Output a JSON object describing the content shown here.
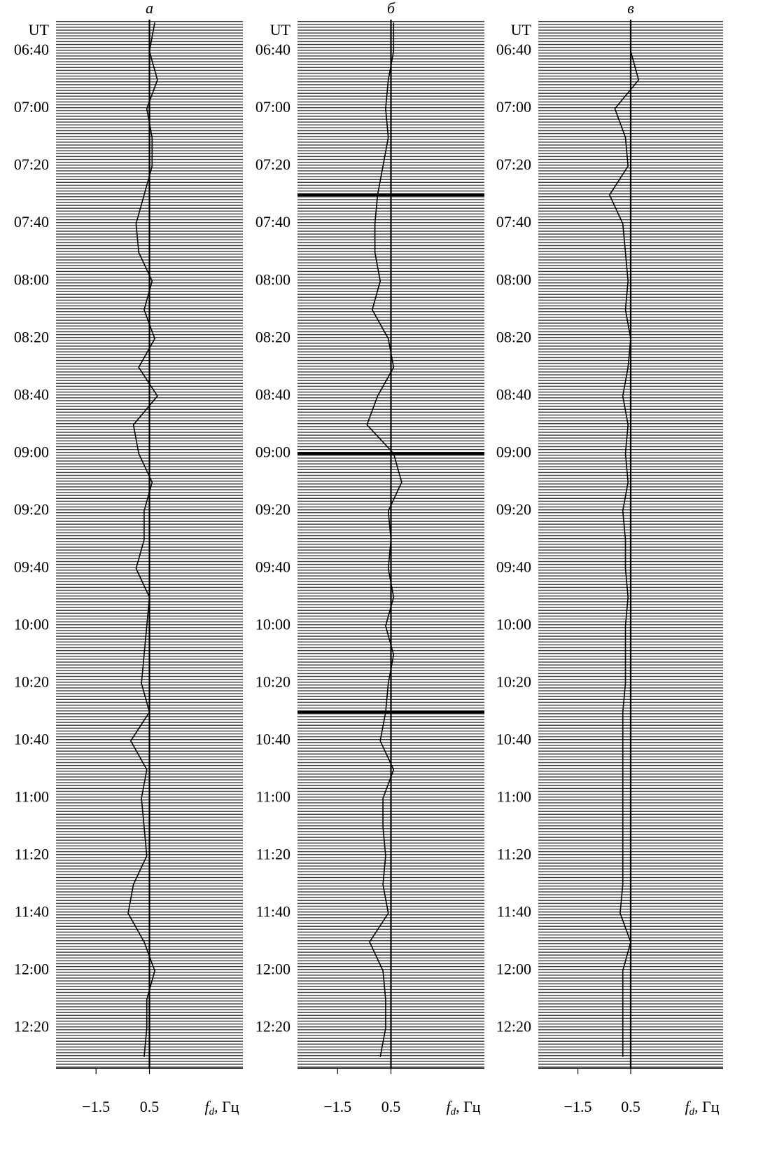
{
  "chart_data": [
    {
      "type": "line",
      "title": "а",
      "ylabel": "UT",
      "xlim": [
        -3,
        4
      ],
      "xticks": [
        {
          "value": -1.5,
          "label": "−1.5"
        },
        0.5
      ],
      "xlabel": {
        "symbol": "f",
        "subscript": "d",
        "unit": ", Гц"
      },
      "ylim": [
        389,
        754
      ],
      "yticks": [
        {
          "value": 400,
          "label": "06:40"
        },
        {
          "value": 420,
          "label": "07:00"
        },
        {
          "value": 440,
          "label": "07:20"
        },
        {
          "value": 460,
          "label": "07:40"
        },
        {
          "value": 480,
          "label": "08:00"
        },
        {
          "value": 500,
          "label": "08:20"
        },
        {
          "value": 520,
          "label": "08:40"
        },
        {
          "value": 540,
          "label": "09:00"
        },
        {
          "value": 560,
          "label": "09:20"
        },
        {
          "value": 580,
          "label": "09:40"
        },
        {
          "value": 600,
          "label": "10:00"
        },
        {
          "value": 620,
          "label": "10:20"
        },
        {
          "value": 640,
          "label": "10:40"
        },
        {
          "value": 660,
          "label": "11:00"
        },
        {
          "value": 680,
          "label": "11:20"
        },
        {
          "value": 700,
          "label": "11:40"
        },
        {
          "value": 720,
          "label": "12:00"
        },
        {
          "value": 740,
          "label": "12:20"
        }
      ],
      "reference_line": 0.5,
      "x": [
        390,
        400,
        410,
        420,
        430,
        440,
        450,
        460,
        470,
        480,
        490,
        500,
        510,
        520,
        530,
        540,
        550,
        560,
        570,
        580,
        590,
        600,
        610,
        620,
        630,
        640,
        650,
        660,
        670,
        680,
        690,
        700,
        710,
        720,
        730,
        740,
        750
      ],
      "color": "#000000",
      "values": [
        0.7,
        0.5,
        0.8,
        0.4,
        0.6,
        0.6,
        0.3,
        0.0,
        0.1,
        0.6,
        0.3,
        0.7,
        0.1,
        0.8,
        -0.1,
        0.1,
        0.6,
        0.3,
        0.3,
        0.0,
        0.5,
        0.4,
        0.3,
        0.2,
        0.5,
        -0.2,
        0.4,
        0.2,
        0.3,
        0.4,
        -0.1,
        -0.3,
        0.3,
        0.7,
        0.4,
        0.4,
        0.3
      ]
    },
    {
      "type": "line",
      "title": "б",
      "ylabel": "UT",
      "xlim": [
        -3,
        4
      ],
      "xticks": [
        {
          "value": -1.5,
          "label": "−1.5"
        },
        0.5
      ],
      "xlabel": {
        "symbol": "f",
        "subscript": "d",
        "unit": ", Гц"
      },
      "ylim": [
        389,
        754
      ],
      "yticks": [
        {
          "value": 400,
          "label": "06:40"
        },
        {
          "value": 420,
          "label": "07:00"
        },
        {
          "value": 440,
          "label": "07:20"
        },
        {
          "value": 460,
          "label": "07:40"
        },
        {
          "value": 480,
          "label": "08:00"
        },
        {
          "value": 500,
          "label": "08:20"
        },
        {
          "value": 520,
          "label": "08:40"
        },
        {
          "value": 540,
          "label": "09:00"
        },
        {
          "value": 560,
          "label": "09:20"
        },
        {
          "value": 580,
          "label": "09:40"
        },
        {
          "value": 600,
          "label": "10:00"
        },
        {
          "value": 620,
          "label": "10:20"
        },
        {
          "value": 640,
          "label": "10:40"
        },
        {
          "value": 660,
          "label": "11:00"
        },
        {
          "value": 680,
          "label": "11:20"
        },
        {
          "value": 700,
          "label": "11:40"
        },
        {
          "value": 720,
          "label": "12:00"
        },
        {
          "value": 740,
          "label": "12:20"
        }
      ],
      "reference_line": 0.5,
      "marked_times": [
        450,
        540,
        630
      ],
      "x": [
        390,
        400,
        410,
        420,
        430,
        440,
        450,
        460,
        470,
        480,
        490,
        500,
        510,
        520,
        530,
        540,
        550,
        560,
        570,
        580,
        590,
        600,
        610,
        620,
        630,
        640,
        650,
        660,
        670,
        680,
        690,
        700,
        710,
        720,
        730,
        740,
        750
      ],
      "color": "#000000",
      "values": [
        0.6,
        0.6,
        0.4,
        0.3,
        0.4,
        0.2,
        0.0,
        -0.1,
        -0.1,
        0.1,
        -0.2,
        0.4,
        0.6,
        0.0,
        -0.4,
        0.6,
        0.9,
        0.4,
        0.5,
        0.4,
        0.6,
        0.3,
        0.6,
        0.4,
        0.3,
        0.1,
        0.6,
        0.2,
        0.2,
        0.3,
        0.2,
        0.4,
        -0.3,
        0.2,
        0.3,
        0.3,
        0.1
      ]
    },
    {
      "type": "line",
      "title": "в",
      "ylabel": "UT",
      "xlim": [
        -3,
        4
      ],
      "xticks": [
        {
          "value": -1.5,
          "label": "−1.5"
        },
        0.5
      ],
      "xlabel": {
        "symbol": "f",
        "subscript": "d",
        "unit": ", Гц"
      },
      "ylim": [
        389,
        754
      ],
      "yticks": [
        {
          "value": 400,
          "label": "06:40"
        },
        {
          "value": 420,
          "label": "07:00"
        },
        {
          "value": 440,
          "label": "07:20"
        },
        {
          "value": 460,
          "label": "07:40"
        },
        {
          "value": 480,
          "label": "08:00"
        },
        {
          "value": 500,
          "label": "08:20"
        },
        {
          "value": 520,
          "label": "08:40"
        },
        {
          "value": 540,
          "label": "09:00"
        },
        {
          "value": 560,
          "label": "09:20"
        },
        {
          "value": 580,
          "label": "09:40"
        },
        {
          "value": 600,
          "label": "10:00"
        },
        {
          "value": 620,
          "label": "10:20"
        },
        {
          "value": 640,
          "label": "10:40"
        },
        {
          "value": 660,
          "label": "11:00"
        },
        {
          "value": 680,
          "label": "11:20"
        },
        {
          "value": 700,
          "label": "11:40"
        },
        {
          "value": 720,
          "label": "12:00"
        },
        {
          "value": 740,
          "label": "12:20"
        }
      ],
      "reference_line": 0.5,
      "x": [
        390,
        400,
        410,
        420,
        430,
        440,
        450,
        460,
        470,
        480,
        490,
        500,
        510,
        520,
        530,
        540,
        550,
        560,
        570,
        580,
        590,
        600,
        610,
        620,
        630,
        640,
        650,
        660,
        670,
        680,
        690,
        700,
        710,
        720,
        730,
        740,
        750
      ],
      "color": "#000000",
      "values": [
        0.5,
        0.5,
        0.8,
        -0.1,
        0.3,
        0.4,
        -0.3,
        0.2,
        0.3,
        0.4,
        0.3,
        0.5,
        0.4,
        0.2,
        0.4,
        0.3,
        0.4,
        0.2,
        0.3,
        0.3,
        0.4,
        0.3,
        0.3,
        0.3,
        0.2,
        0.2,
        0.2,
        0.2,
        0.2,
        0.2,
        0.2,
        0.1,
        0.5,
        0.2,
        0.2,
        0.2,
        0.2
      ]
    }
  ]
}
